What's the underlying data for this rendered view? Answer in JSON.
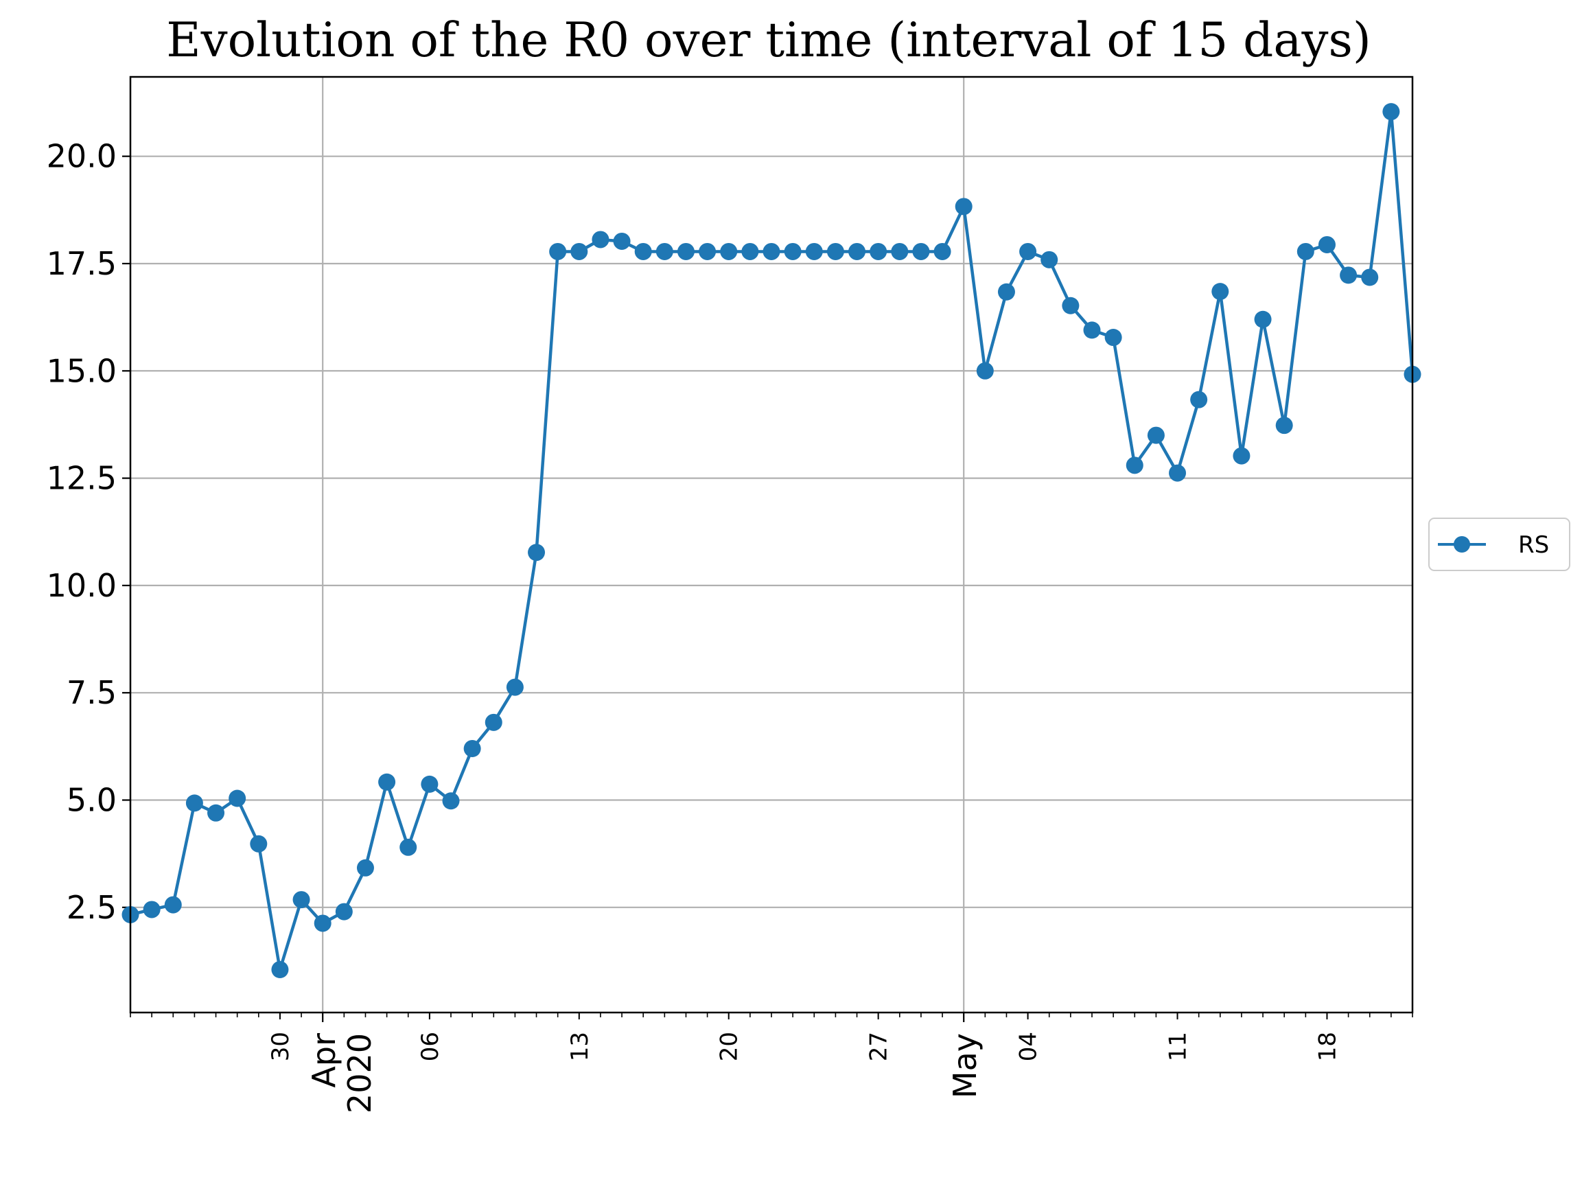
{
  "chart_data": {
    "type": "line",
    "title": "Evolution of the R0 over time (interval of 15 days)",
    "xlabel": "",
    "ylabel": "",
    "x_start_date": "2020-03-23",
    "x_end_date": "2020-05-22",
    "ylim": [
      0.05,
      21.85
    ],
    "yticks": [
      2.5,
      5.0,
      7.5,
      10.0,
      12.5,
      15.0,
      17.5,
      20.0
    ],
    "ytick_labels": [
      "2.5",
      "5.0",
      "7.5",
      "10.0",
      "12.5",
      "15.0",
      "17.5",
      "20.0"
    ],
    "x_minor_ticks": [
      {
        "date": "2020-03-30",
        "label": "30"
      },
      {
        "date": "2020-04-06",
        "label": "06"
      },
      {
        "date": "2020-04-13",
        "label": "13"
      },
      {
        "date": "2020-04-20",
        "label": "20"
      },
      {
        "date": "2020-04-27",
        "label": "27"
      },
      {
        "date": "2020-05-04",
        "label": "04"
      },
      {
        "date": "2020-05-11",
        "label": "11"
      },
      {
        "date": "2020-05-18",
        "label": "18"
      }
    ],
    "x_major_ticks": [
      {
        "date": "2020-04-01",
        "label": "Apr\n2020"
      },
      {
        "date": "2020-05-01",
        "label": "May"
      }
    ],
    "grid": true,
    "legend_position": "center-right outside",
    "series": [
      {
        "name": "RS",
        "color": "#1f77b4",
        "marker": "circle",
        "x": [
          "2020-03-23",
          "2020-03-24",
          "2020-03-25",
          "2020-03-26",
          "2020-03-27",
          "2020-03-28",
          "2020-03-29",
          "2020-03-30",
          "2020-03-31",
          "2020-04-01",
          "2020-04-02",
          "2020-04-03",
          "2020-04-04",
          "2020-04-05",
          "2020-04-06",
          "2020-04-07",
          "2020-04-08",
          "2020-04-09",
          "2020-04-10",
          "2020-04-11",
          "2020-04-12",
          "2020-04-13",
          "2020-04-14",
          "2020-04-15",
          "2020-04-16",
          "2020-04-17",
          "2020-04-18",
          "2020-04-19",
          "2020-04-20",
          "2020-04-21",
          "2020-04-22",
          "2020-04-23",
          "2020-04-24",
          "2020-04-25",
          "2020-04-26",
          "2020-04-27",
          "2020-04-28",
          "2020-04-29",
          "2020-04-30",
          "2020-05-01",
          "2020-05-02",
          "2020-05-03",
          "2020-05-04",
          "2020-05-05",
          "2020-05-06",
          "2020-05-07",
          "2020-05-08",
          "2020-05-09",
          "2020-05-10",
          "2020-05-11",
          "2020-05-12",
          "2020-05-13",
          "2020-05-14",
          "2020-05-15",
          "2020-05-16",
          "2020-05-17",
          "2020-05-18",
          "2020-05-19",
          "2020-05-20",
          "2020-05-21",
          "2020-05-22"
        ],
        "values": [
          2.33,
          2.45,
          2.56,
          4.93,
          4.7,
          5.04,
          3.98,
          1.05,
          2.68,
          2.13,
          2.4,
          3.42,
          5.42,
          3.9,
          5.37,
          4.98,
          6.2,
          6.81,
          7.63,
          10.77,
          17.78,
          17.78,
          18.06,
          18.02,
          17.78,
          17.78,
          17.78,
          17.78,
          17.78,
          17.78,
          17.78,
          17.78,
          17.78,
          17.78,
          17.78,
          17.78,
          17.78,
          17.78,
          17.78,
          18.83,
          15.0,
          16.84,
          17.78,
          17.59,
          16.52,
          15.95,
          15.78,
          12.8,
          13.5,
          12.62,
          14.33,
          16.85,
          13.02,
          16.2,
          13.73,
          17.78,
          17.94,
          17.23,
          17.18,
          21.04,
          14.92
        ]
      }
    ]
  }
}
